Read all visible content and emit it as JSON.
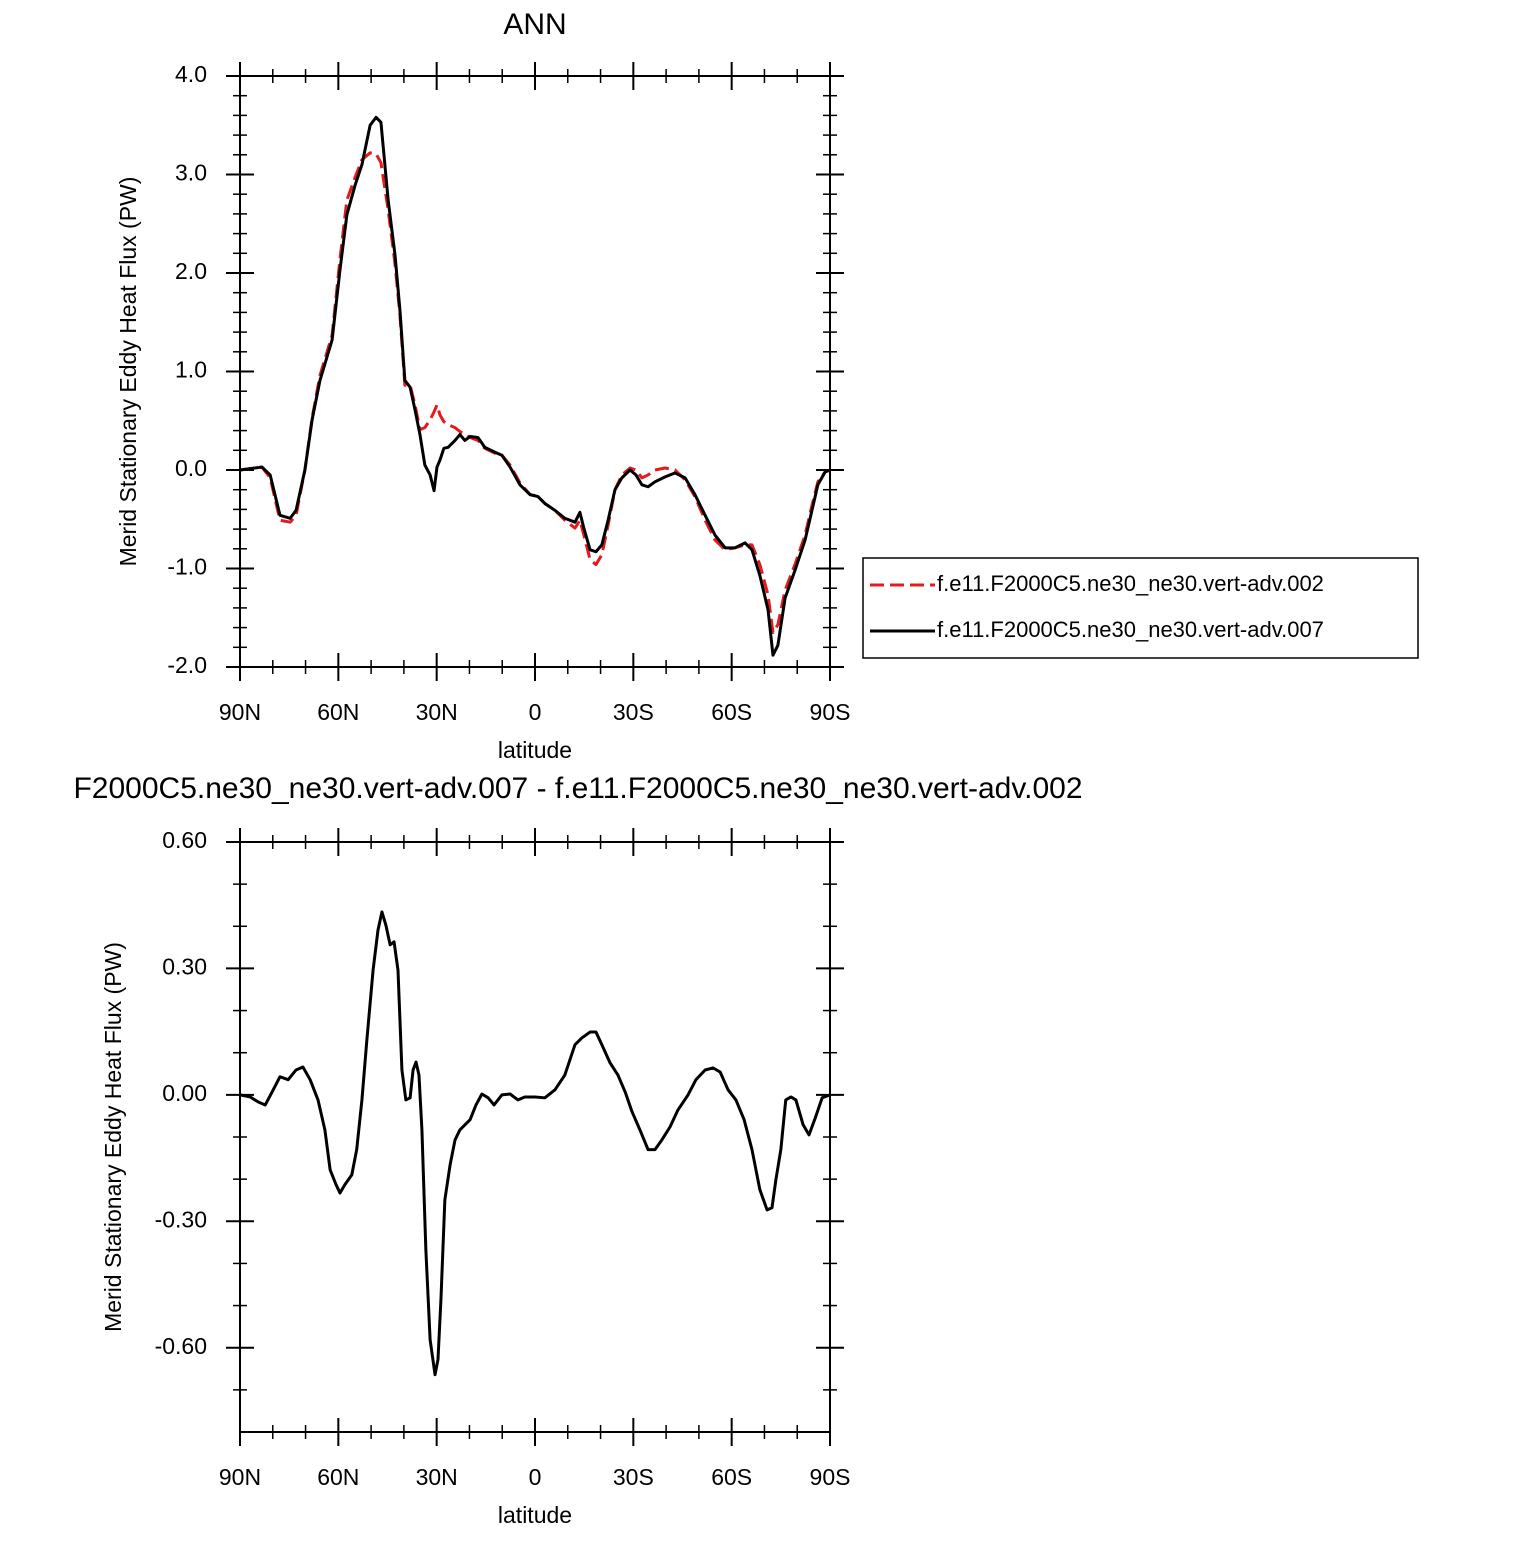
{
  "chart_data": [
    {
      "type": "line",
      "title": "ANN",
      "xlabel": "latitude",
      "ylabel": "Merid Stationary Eddy Heat Flux (PW)",
      "xlim": [
        90,
        -90
      ],
      "xticks": [
        {
          "value": 90,
          "label": "90N"
        },
        {
          "value": 60,
          "label": "60N"
        },
        {
          "value": 30,
          "label": "30N"
        },
        0,
        {
          "value": -30,
          "label": "30S"
        },
        {
          "value": -60,
          "label": "60S"
        },
        {
          "value": -90,
          "label": "90S"
        }
      ],
      "ylim": [
        -2,
        4
      ],
      "yticks": [
        {
          "value": -2,
          "label": "-2.0"
        },
        {
          "value": -1,
          "label": "-1.0"
        },
        {
          "value": 0,
          "label": "0.0"
        },
        {
          "value": 1,
          "label": "1.0"
        },
        {
          "value": 2,
          "label": "2.0"
        },
        {
          "value": 3,
          "label": "3.0"
        },
        {
          "value": 4,
          "label": "4.0"
        }
      ],
      "legend": "right",
      "x": [
        90,
        83.3,
        80.8,
        77.8,
        74.7,
        72.9,
        70.2,
        68.0,
        65.6,
        61.9,
        59.5,
        57.4,
        54.9,
        52.8,
        50.3,
        48.5,
        47.0,
        44.8,
        42.7,
        41.2,
        39.7,
        38.1,
        36.6,
        35.1,
        33.6,
        32.0,
        30.8,
        29.9,
        29.0,
        27.8,
        26.5,
        24.4,
        22.9,
        21.4,
        19.8,
        17.4,
        15.3,
        12.2,
        10.1,
        7.6,
        4.6,
        1.5,
        -0.9,
        -3.0,
        -6.1,
        -9.1,
        -12.2,
        -13.7,
        -14.9,
        -16.8,
        -18.6,
        -20.4,
        -22.3,
        -24.4,
        -26.5,
        -29.0,
        -30.8,
        -32.6,
        -34.5,
        -36.6,
        -39.7,
        -42.7,
        -45.8,
        -48.8,
        -51.9,
        -54.9,
        -58.0,
        -61.0,
        -64.1,
        -66.2,
        -68.6,
        -71.1,
        -72.6,
        -74.1,
        -76.3,
        -79.3,
        -82.4,
        -84.5,
        -86.3,
        -88.5,
        -90
      ],
      "series": [
        {
          "name": "f.e11.F2000C5.ne30_ne30.vert-adv.002",
          "color": "#e41a1c",
          "dashed": true,
          "values": [
            0,
            0.03,
            -0.08,
            -0.51,
            -0.53,
            -0.46,
            0,
            0.53,
            0.96,
            1.37,
            2.14,
            2.74,
            2.97,
            3.15,
            3.22,
            3.21,
            3.12,
            2.64,
            2.09,
            1.57,
            0.86,
            0.86,
            0.66,
            0.41,
            0.43,
            0.51,
            0.59,
            0.66,
            0.56,
            0.49,
            0.46,
            0.43,
            0.39,
            0.36,
            0.33,
            0.3,
            0.22,
            0.17,
            0.15,
            0.05,
            -0.13,
            -0.25,
            -0.27,
            -0.34,
            -0.41,
            -0.51,
            -0.59,
            -0.51,
            -0.66,
            -0.91,
            -0.96,
            -0.86,
            -0.56,
            -0.2,
            -0.05,
            0.02,
            0,
            -0.08,
            -0.05,
            0,
            0.02,
            0,
            -0.1,
            -0.27,
            -0.51,
            -0.71,
            -0.81,
            -0.79,
            -0.76,
            -0.76,
            -0.96,
            -1.27,
            -1.65,
            -1.57,
            -1.22,
            -0.96,
            -0.66,
            -0.36,
            -0.12,
            -0.02,
            0
          ]
        },
        {
          "name": "f.e11.F2000C5.ne30_ne30.vert-adv.007",
          "color": "#000000",
          "dashed": false,
          "values": [
            0,
            0.03,
            -0.05,
            -0.46,
            -0.49,
            -0.41,
            0,
            0.51,
            0.91,
            1.32,
            2.03,
            2.59,
            2.89,
            3.1,
            3.5,
            3.58,
            3.53,
            2.74,
            2.18,
            1.62,
            0.91,
            0.84,
            0.61,
            0.36,
            0.05,
            -0.05,
            -0.21,
            0.03,
            0.1,
            0.22,
            0.23,
            0.3,
            0.36,
            0.3,
            0.34,
            0.33,
            0.23,
            0.18,
            0.15,
            0.03,
            -0.15,
            -0.25,
            -0.27,
            -0.34,
            -0.41,
            -0.49,
            -0.53,
            -0.43,
            -0.59,
            -0.81,
            -0.83,
            -0.76,
            -0.51,
            -0.2,
            -0.08,
            0,
            -0.05,
            -0.15,
            -0.17,
            -0.12,
            -0.07,
            -0.03,
            -0.08,
            -0.25,
            -0.46,
            -0.66,
            -0.79,
            -0.79,
            -0.74,
            -0.81,
            -1.07,
            -1.42,
            -1.88,
            -1.78,
            -1.3,
            -1.02,
            -0.71,
            -0.41,
            -0.15,
            -0.02,
            0
          ]
        }
      ]
    },
    {
      "type": "line",
      "title": "F2000C5.ne30_ne30.vert-adv.007 - f.e11.F2000C5.ne30_ne30.vert-adv.002",
      "xlabel": "latitude",
      "ylabel": "Merid Stationary Eddy Heat Flux (PW)",
      "xlim": [
        90,
        -90
      ],
      "xticks": [
        {
          "value": 90,
          "label": "90N"
        },
        {
          "value": 60,
          "label": "60N"
        },
        {
          "value": 30,
          "label": "30N"
        },
        0,
        {
          "value": -30,
          "label": "30S"
        },
        {
          "value": -60,
          "label": "60S"
        },
        {
          "value": -90,
          "label": "90S"
        }
      ],
      "ylim": [
        -0.8,
        0.6
      ],
      "yticks": [
        {
          "value": -0.6,
          "label": "-0.60"
        },
        {
          "value": -0.3,
          "label": "-0.30"
        },
        {
          "value": 0,
          "label": "0.00"
        },
        {
          "value": 0.3,
          "label": "0.30"
        },
        {
          "value": 0.6,
          "label": "0.60"
        }
      ],
      "x": [
        90,
        86.9,
        84.4,
        82.3,
        80.2,
        77.8,
        75.3,
        72.9,
        70.8,
        68.6,
        66.2,
        64.1,
        62.5,
        60.7,
        59.5,
        58.0,
        55.9,
        54.4,
        52.8,
        51.3,
        49.4,
        47.9,
        46.7,
        45.5,
        44.2,
        43.0,
        41.8,
        40.6,
        39.4,
        38.1,
        37.2,
        36.3,
        35.4,
        34.5,
        33.3,
        32.0,
        30.5,
        29.6,
        28.7,
        27.5,
        25.9,
        24.4,
        22.9,
        19.8,
        18.0,
        16.2,
        14.3,
        12.5,
        10.1,
        7.6,
        5.2,
        3.1,
        0.0,
        -3.0,
        -6.1,
        -9.1,
        -12.2,
        -14.3,
        -16.8,
        -18.6,
        -20.4,
        -22.9,
        -25.3,
        -27.5,
        -29.6,
        -32.0,
        -34.5,
        -36.6,
        -38.7,
        -41.2,
        -43.6,
        -46.7,
        -49.1,
        -51.9,
        -54.3,
        -56.5,
        -58.9,
        -61.3,
        -63.8,
        -66.2,
        -68.6,
        -70.8,
        -72.3,
        -73.5,
        -75.0,
        -76.5,
        -78.1,
        -79.6,
        -81.8,
        -83.6,
        -85.5,
        -87.6,
        -90
      ],
      "series": [
        {
          "color": "#000000",
          "dashed": false,
          "values": [
            0,
            -0.005,
            -0.017,
            -0.024,
            0.007,
            0.043,
            0.036,
            0.059,
            0.066,
            0.036,
            -0.012,
            -0.083,
            -0.178,
            -0.213,
            -0.233,
            -0.213,
            -0.19,
            -0.13,
            -0.012,
            0.13,
            0.296,
            0.391,
            0.434,
            0.403,
            0.356,
            0.363,
            0.296,
            0.059,
            -0.012,
            -0.007,
            0.059,
            0.078,
            0.047,
            -0.083,
            -0.367,
            -0.581,
            -0.664,
            -0.628,
            -0.486,
            -0.249,
            -0.166,
            -0.107,
            -0.083,
            -0.059,
            -0.024,
            0.002,
            -0.007,
            -0.024,
            0,
            0.002,
            -0.012,
            -0.005,
            -0.005,
            -0.007,
            0.012,
            0.047,
            0.119,
            0.135,
            0.149,
            0.149,
            0.119,
            0.076,
            0.047,
            0.007,
            -0.04,
            -0.083,
            -0.13,
            -0.13,
            -0.107,
            -0.076,
            -0.036,
            0,
            0.036,
            0.059,
            0.064,
            0.054,
            0.012,
            -0.012,
            -0.059,
            -0.13,
            -0.225,
            -0.273,
            -0.268,
            -0.201,
            -0.13,
            -0.012,
            -0.005,
            -0.012,
            -0.071,
            -0.095,
            -0.055,
            -0.007,
            0
          ]
        }
      ]
    }
  ]
}
